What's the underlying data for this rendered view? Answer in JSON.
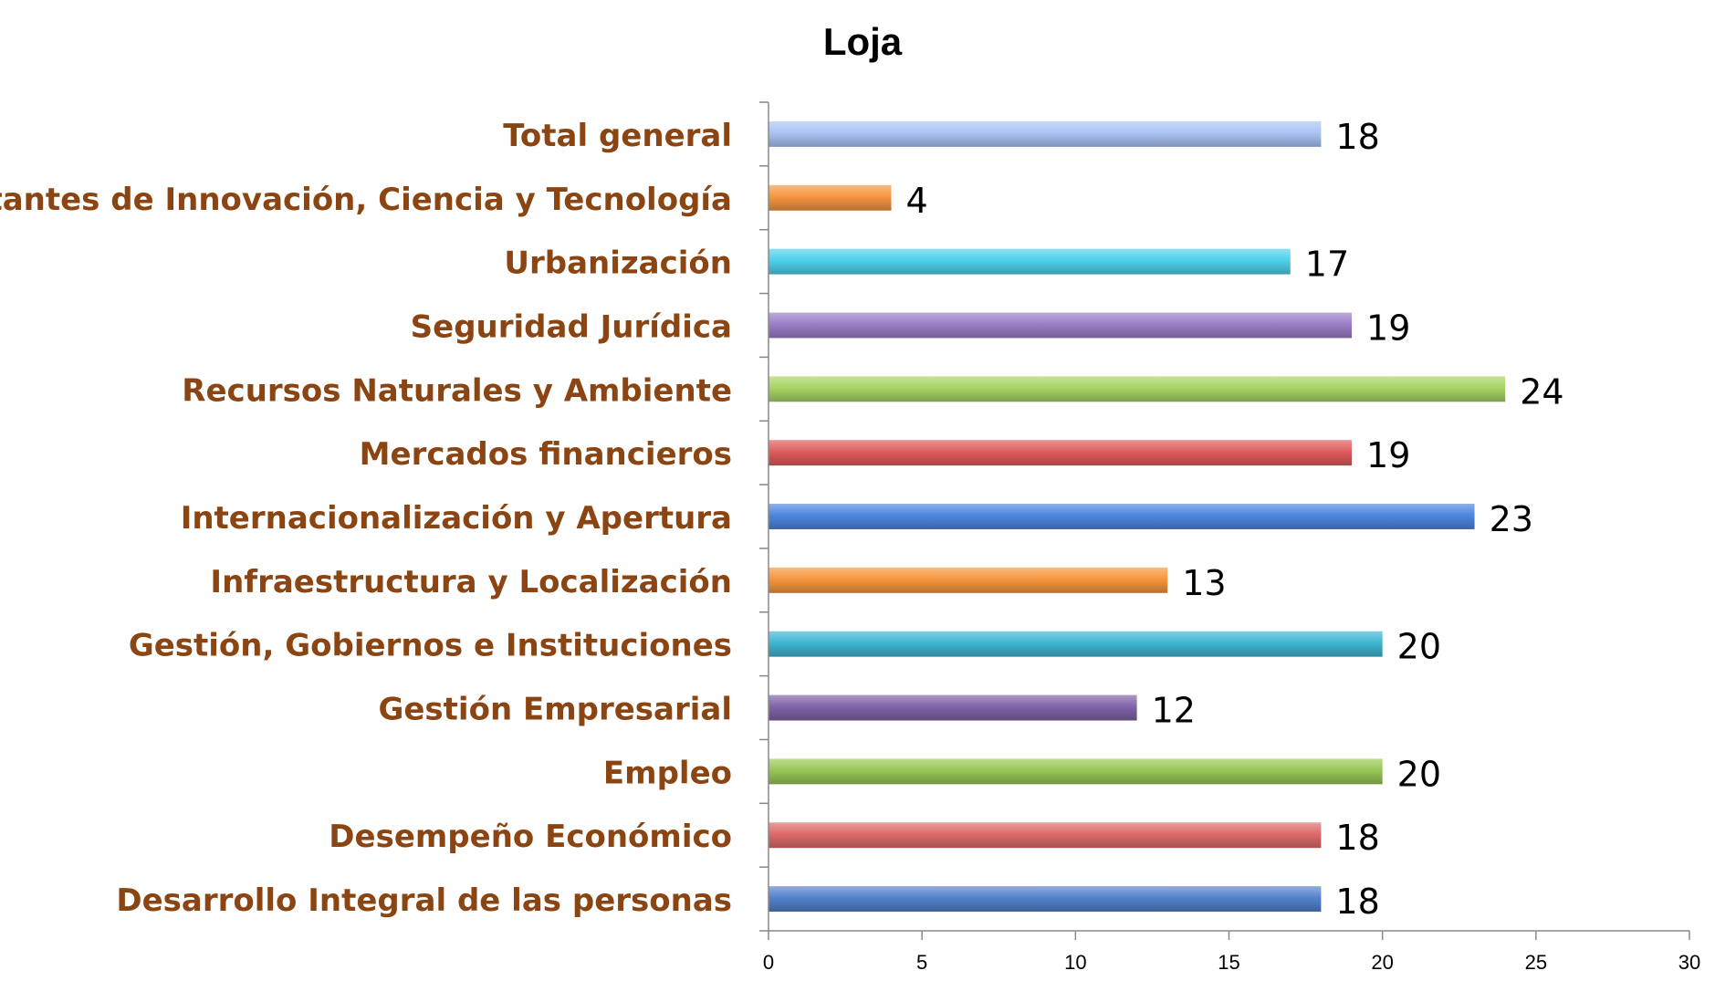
{
  "chart_data": {
    "type": "bar",
    "orientation": "horizontal",
    "title": "Loja",
    "xlabel": "",
    "ylabel": "",
    "xlim": [
      0,
      30
    ],
    "x_ticks": [
      0,
      5,
      10,
      15,
      20,
      25,
      30
    ],
    "grid": false,
    "legend": "none",
    "categories": [
      "Total general",
      "Habilitantes de Innovación, Ciencia y Tecnología",
      "Urbanización",
      "Seguridad Jurídica",
      "Recursos Naturales y Ambiente",
      "Mercados financieros",
      "Internacionalización y Apertura",
      "Infraestructura y Localización",
      "Gestión, Gobiernos e Instituciones",
      "Gestión Empresarial",
      "Empleo",
      "Desempeño Económico",
      "Desarrollo Integral de las personas"
    ],
    "values": [
      18,
      4,
      17,
      19,
      24,
      19,
      23,
      13,
      20,
      12,
      20,
      18,
      18
    ],
    "colors": [
      "#a9c4f5",
      "#f7963f",
      "#4fd0ec",
      "#9a7ec8",
      "#a8d564",
      "#e05c5c",
      "#4e86de",
      "#f7963f",
      "#3fb6d2",
      "#8064a8",
      "#98c756",
      "#dd6b6b",
      "#5482cc"
    ],
    "category_label_color": "#8B4513"
  }
}
